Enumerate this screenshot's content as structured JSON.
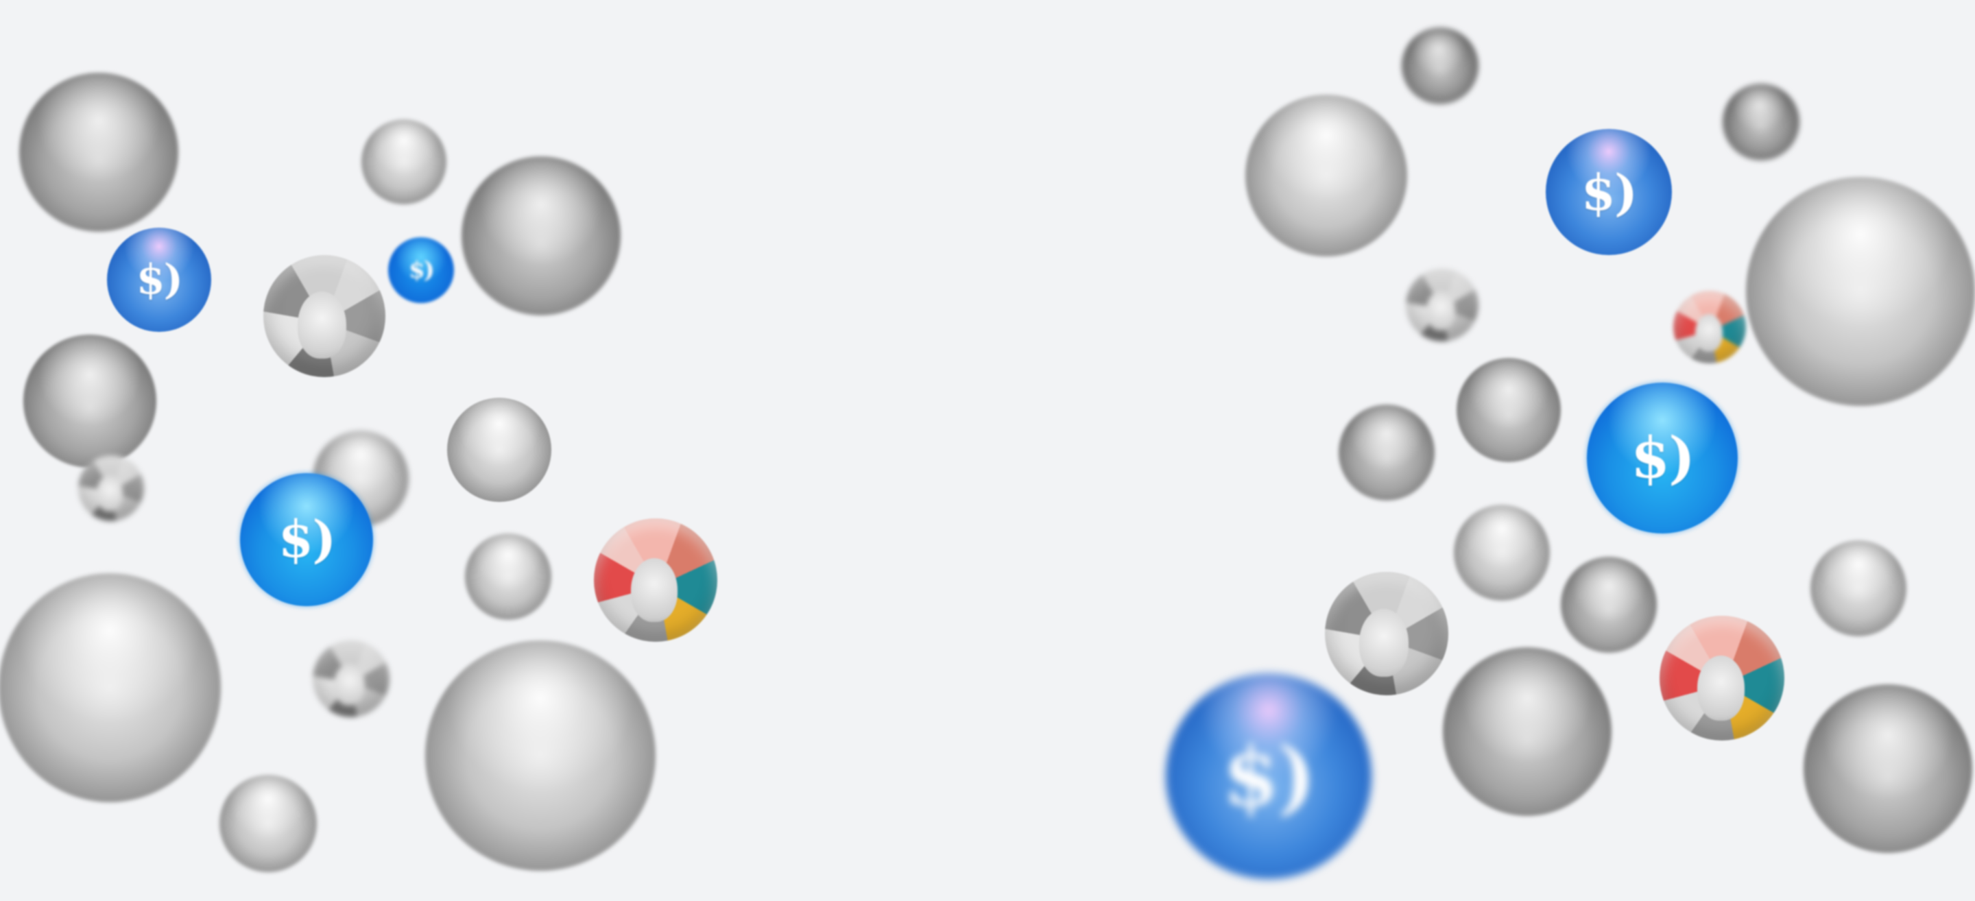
{
  "scene": {
    "background_color": "#f2f3f5",
    "logo_mark": "$)",
    "accent_colors": {
      "blue": "#2a6fd0",
      "blue_fuzzy": "#1a90e6",
      "coral": "#e24a4a",
      "teal": "#1f8a95",
      "gold": "#e4ad2a"
    }
  }
}
